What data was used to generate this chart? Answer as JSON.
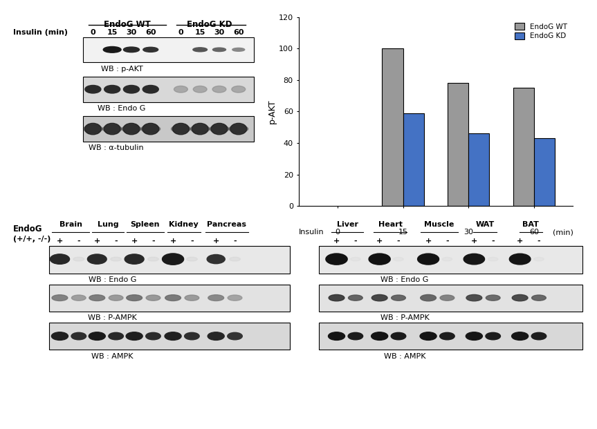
{
  "bar_wt_values": [
    0,
    100,
    78,
    75
  ],
  "bar_kd_values": [
    0,
    59,
    46,
    43
  ],
  "bar_xticks": [
    0,
    15,
    30,
    60
  ],
  "bar_xlabel": "Insulin",
  "bar_xunit": "(min)",
  "bar_ylabel": "p-AKT",
  "bar_ylim": [
    0,
    120
  ],
  "bar_yticks": [
    0,
    20,
    40,
    60,
    80,
    100,
    120
  ],
  "bar_color_wt": "#999999",
  "bar_color_kd": "#4472C4",
  "bar_legend_wt": "EndoG WT",
  "bar_legend_kd": "EndoG KD",
  "bg_color": "#ffffff"
}
